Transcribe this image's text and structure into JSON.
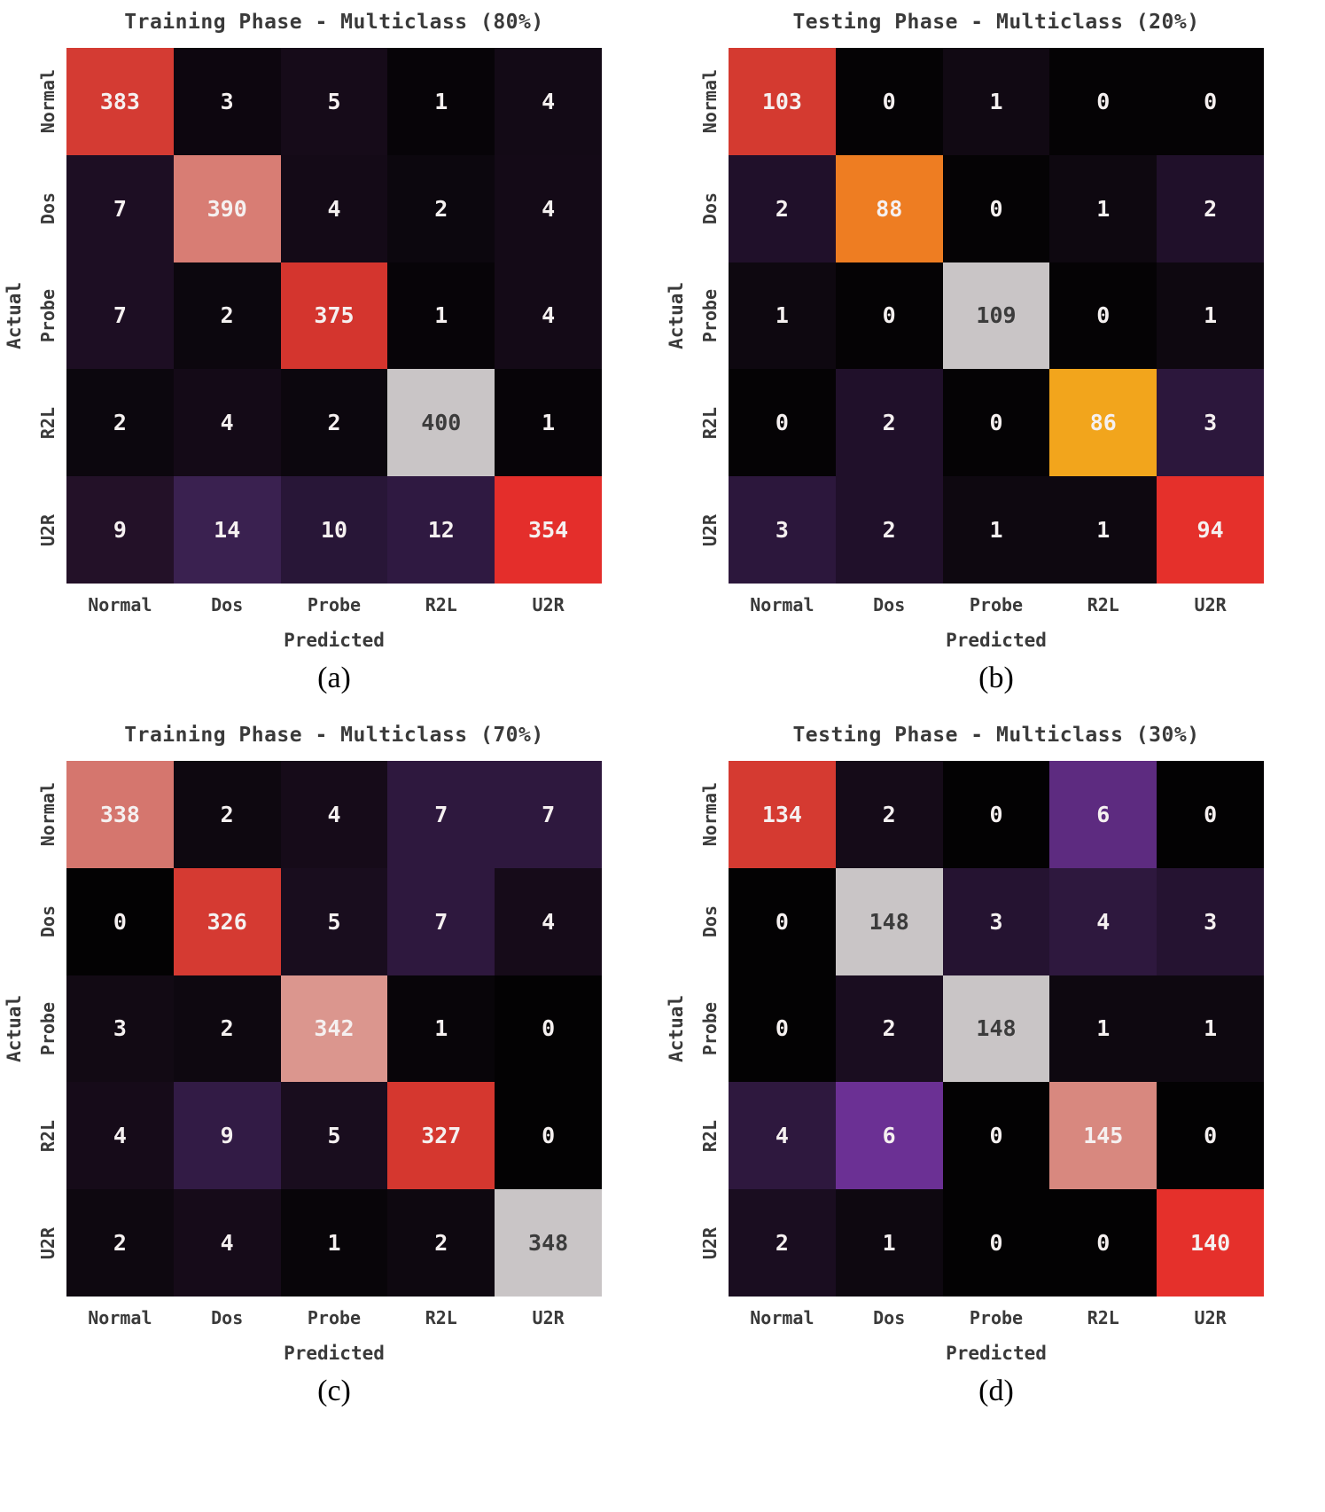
{
  "colors": {
    "background": "#ffffff",
    "label_text": "#3a3a3a",
    "cell_text_light": "#f5f0f0",
    "cell_text_dark": "#3c3c3c"
  },
  "chart_data": [
    {
      "type": "heatmap",
      "title": "Training Phase - Multiclass (80%)",
      "caption": "(a)",
      "xlabel": "Predicted",
      "ylabel": "Actual",
      "x_categories": [
        "Normal",
        "Dos",
        "Probe",
        "R2L",
        "U2R"
      ],
      "y_categories": [
        "Normal",
        "Dos",
        "Probe",
        "R2L",
        "U2R"
      ],
      "values": [
        [
          383,
          3,
          5,
          1,
          4
        ],
        [
          7,
          390,
          4,
          2,
          4
        ],
        [
          7,
          2,
          375,
          1,
          4
        ],
        [
          2,
          4,
          2,
          400,
          1
        ],
        [
          9,
          14,
          10,
          12,
          354
        ]
      ],
      "cell_colors": [
        [
          "#d43b33",
          "#0d060f",
          "#160b19",
          "#070408",
          "#130a16"
        ],
        [
          "#1d0e23",
          "#d87d74",
          "#140a17",
          "#0c070e",
          "#140a17"
        ],
        [
          "#1d0e23",
          "#0c070e",
          "#d4352e",
          "#070408",
          "#140a17"
        ],
        [
          "#0c070e",
          "#140a17",
          "#0c070e",
          "#c9c5c6",
          "#070408"
        ],
        [
          "#231128",
          "#3a2150",
          "#281637",
          "#2f1941",
          "#e42e2b"
        ]
      ]
    },
    {
      "type": "heatmap",
      "title": "Testing Phase - Multiclass (20%)",
      "caption": "(b)",
      "xlabel": "Predicted",
      "ylabel": "Actual",
      "x_categories": [
        "Normal",
        "Dos",
        "Probe",
        "R2L",
        "U2R"
      ],
      "y_categories": [
        "Normal",
        "Dos",
        "Probe",
        "R2L",
        "U2R"
      ],
      "values": [
        [
          103,
          0,
          1,
          0,
          0
        ],
        [
          2,
          88,
          0,
          1,
          2
        ],
        [
          1,
          0,
          109,
          0,
          1
        ],
        [
          0,
          2,
          0,
          86,
          3
        ],
        [
          3,
          2,
          1,
          1,
          94
        ]
      ],
      "cell_colors": [
        [
          "#d43a30",
          "#050305",
          "#110913",
          "#050305",
          "#050305"
        ],
        [
          "#20102a",
          "#ee7d22",
          "#050305",
          "#0e0810",
          "#20102a"
        ],
        [
          "#0e0810",
          "#050305",
          "#c9c5c6",
          "#050305",
          "#0e0810"
        ],
        [
          "#050305",
          "#20102a",
          "#050305",
          "#f2a51c",
          "#2c173c"
        ],
        [
          "#2c173c",
          "#20102a",
          "#0e0810",
          "#0e0810",
          "#e5302b"
        ]
      ]
    },
    {
      "type": "heatmap",
      "title": "Training Phase - Multiclass (70%)",
      "caption": "(c)",
      "xlabel": "Predicted",
      "ylabel": "Actual",
      "x_categories": [
        "Normal",
        "Dos",
        "Probe",
        "R2L",
        "U2R"
      ],
      "y_categories": [
        "Normal",
        "Dos",
        "Probe",
        "R2L",
        "U2R"
      ],
      "values": [
        [
          338,
          2,
          4,
          7,
          7
        ],
        [
          0,
          326,
          5,
          7,
          4
        ],
        [
          3,
          2,
          342,
          1,
          0
        ],
        [
          4,
          9,
          5,
          327,
          0
        ],
        [
          2,
          4,
          1,
          2,
          348
        ]
      ],
      "cell_colors": [
        [
          "#d5766e",
          "#0e0810",
          "#160b19",
          "#2e183e",
          "#2e183e"
        ],
        [
          "#030203",
          "#d53a32",
          "#190d1e",
          "#2e183e",
          "#160b19"
        ],
        [
          "#120a14",
          "#0e0810",
          "#db968e",
          "#080509",
          "#030203"
        ],
        [
          "#160b19",
          "#321b45",
          "#190d1e",
          "#d5372f",
          "#030203"
        ],
        [
          "#0e0810",
          "#160b19",
          "#080509",
          "#0e0810",
          "#c9c5c6"
        ]
      ]
    },
    {
      "type": "heatmap",
      "title": "Testing Phase - Multiclass (30%)",
      "caption": "(d)",
      "xlabel": "Predicted",
      "ylabel": "Actual",
      "x_categories": [
        "Normal",
        "Dos",
        "Probe",
        "R2L",
        "U2R"
      ],
      "y_categories": [
        "Normal",
        "Dos",
        "Probe",
        "R2L",
        "U2R"
      ],
      "values": [
        [
          134,
          2,
          0,
          6,
          0
        ],
        [
          0,
          148,
          3,
          4,
          3
        ],
        [
          0,
          2,
          148,
          1,
          1
        ],
        [
          4,
          6,
          0,
          145,
          0
        ],
        [
          2,
          1,
          0,
          0,
          140
        ]
      ],
      "cell_colors": [
        [
          "#d53a31",
          "#150b18",
          "#030203",
          "#5d2b80",
          "#030203"
        ],
        [
          "#030203",
          "#c9c5c6",
          "#251331",
          "#2e183e",
          "#251331"
        ],
        [
          "#030203",
          "#1a0d20",
          "#c9c5c6",
          "#0e0810",
          "#0e0810"
        ],
        [
          "#2e183e",
          "#6b3094",
          "#030203",
          "#d8887f",
          "#030203"
        ],
        [
          "#1a0d20",
          "#0e0810",
          "#030203",
          "#030203",
          "#e5302b"
        ]
      ]
    }
  ]
}
